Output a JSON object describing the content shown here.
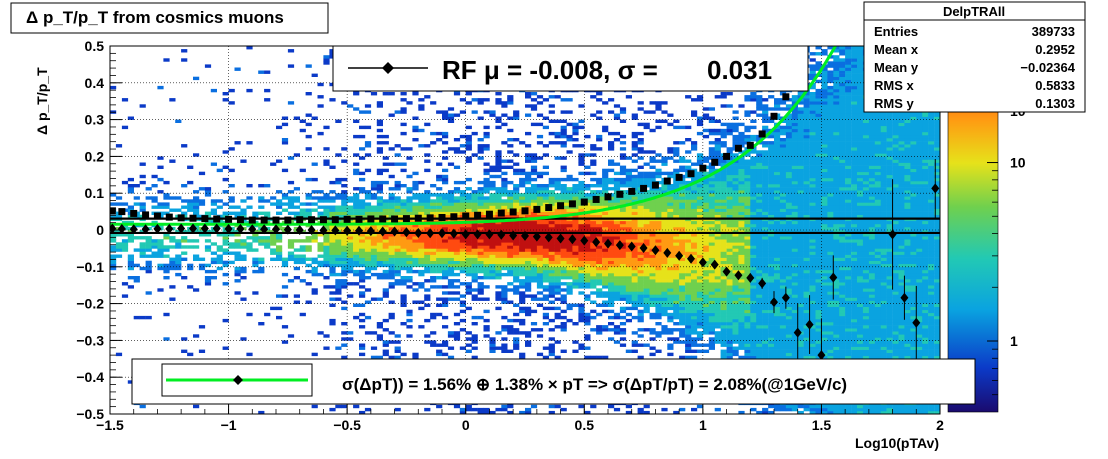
{
  "chart_data": {
    "type": "heatmap",
    "title": "Δ p_T/p_T from cosmics muons",
    "xlabel": "Log10(pTAv)",
    "ylabel": "Δ p_T/p_T",
    "xlim": [
      -1.5,
      2.0
    ],
    "ylim": [
      -0.5,
      0.5
    ],
    "x_ticks": [
      "−1.5",
      "−1",
      "−0.5",
      "0",
      "0.5",
      "1",
      "1.5",
      "2"
    ],
    "y_ticks": [
      "−0.5",
      "−0.4",
      "−0.3",
      "−0.2",
      "−0.1",
      "0",
      "0.1",
      "0.2",
      "0.3",
      "0.4",
      "0.5"
    ],
    "colorbar": {
      "scale": "log",
      "range": [
        0.4,
        45
      ],
      "ticks": [
        "1",
        "10"
      ],
      "top_label": "10"
    },
    "grid": true,
    "stats_box": {
      "name": "DelpTRAll",
      "rows": [
        {
          "label": "Entries",
          "value": "389733"
        },
        {
          "label": "Mean x",
          "value": "0.2952"
        },
        {
          "label": "Mean y",
          "value": "−0.02364"
        },
        {
          "label": "RMS x",
          "value": "0.5833"
        },
        {
          "label": "RMS y",
          "value": "0.1303"
        }
      ]
    },
    "legend_top": {
      "text_pre": "RF μ = -0.008, σ =",
      "text_val": "0.031"
    },
    "legend_bottom": {
      "text": "σ(ΔpT)) =  1.56% ⊕  1.38% × pT => σ(ΔpT/pT) =  2.08%(@1GeV/c)"
    },
    "series": [
      {
        "marker": "square",
        "x": [
          -1.49,
          -1.45,
          -1.4,
          -1.35,
          -1.3,
          -1.25,
          -1.2,
          -1.15,
          -1.1,
          -1.05,
          -1.0,
          -0.95,
          -0.9,
          -0.85,
          -0.8,
          -0.75,
          -0.7,
          -0.65,
          -0.6,
          -0.55,
          -0.5,
          -0.45,
          -0.4,
          -0.35,
          -0.3,
          -0.25,
          -0.2,
          -0.15,
          -0.1,
          -0.05,
          0.0,
          0.05,
          0.1,
          0.15,
          0.2,
          0.25,
          0.3,
          0.35,
          0.4,
          0.45,
          0.5,
          0.55,
          0.6,
          0.65,
          0.7,
          0.75,
          0.8,
          0.85,
          0.9,
          0.95,
          1.0,
          1.05,
          1.1,
          1.15,
          1.2,
          1.25,
          1.3,
          1.35,
          1.4
        ],
        "y": [
          0.052,
          0.05,
          0.045,
          0.041,
          0.038,
          0.035,
          0.033,
          0.032,
          0.031,
          0.03,
          0.029,
          0.028,
          0.027,
          0.027,
          0.027,
          0.027,
          0.028,
          0.028,
          0.028,
          0.028,
          0.029,
          0.029,
          0.03,
          0.03,
          0.03,
          0.031,
          0.032,
          0.033,
          0.034,
          0.036,
          0.038,
          0.04,
          0.043,
          0.046,
          0.049,
          0.052,
          0.056,
          0.061,
          0.066,
          0.071,
          0.076,
          0.083,
          0.09,
          0.097,
          0.105,
          0.113,
          0.122,
          0.133,
          0.143,
          0.153,
          0.168,
          0.184,
          0.2,
          0.222,
          0.23,
          0.261,
          0.309,
          0.362,
          0.417
        ]
      },
      {
        "marker": "diamond",
        "x": [
          -1.49,
          -1.45,
          -1.4,
          -1.35,
          -1.3,
          -1.25,
          -1.2,
          -1.15,
          -1.1,
          -1.05,
          -1.0,
          -0.95,
          -0.9,
          -0.85,
          -0.8,
          -0.75,
          -0.7,
          -0.65,
          -0.6,
          -0.55,
          -0.5,
          -0.45,
          -0.4,
          -0.35,
          -0.3,
          -0.25,
          -0.2,
          -0.15,
          -0.1,
          -0.05,
          0.0,
          0.05,
          0.1,
          0.15,
          0.2,
          0.25,
          0.3,
          0.35,
          0.4,
          0.45,
          0.5,
          0.55,
          0.6,
          0.65,
          0.7,
          0.75,
          0.8,
          0.85,
          0.9,
          0.95,
          1.0,
          1.05,
          1.1,
          1.15,
          1.2,
          1.25,
          1.3,
          1.35,
          1.4,
          1.45,
          1.5,
          1.55,
          1.8,
          1.85,
          1.9,
          1.98
        ],
        "y": [
          0.004,
          0.003,
          0.002,
          0.002,
          0.003,
          0.003,
          0.004,
          0.004,
          0.004,
          0.004,
          0.003,
          0.003,
          0.002,
          0.002,
          0.002,
          0.001,
          0.0,
          0.0,
          -0.001,
          -0.001,
          -0.002,
          -0.002,
          -0.003,
          -0.004,
          -0.004,
          -0.006,
          -0.008,
          -0.009,
          -0.009,
          -0.01,
          -0.012,
          -0.012,
          -0.012,
          -0.013,
          -0.015,
          -0.016,
          -0.018,
          -0.02,
          -0.023,
          -0.025,
          -0.029,
          -0.033,
          -0.037,
          -0.041,
          -0.045,
          -0.049,
          -0.055,
          -0.062,
          -0.07,
          -0.078,
          -0.088,
          -0.094,
          -0.113,
          -0.123,
          -0.13,
          -0.145,
          -0.196,
          -0.184,
          -0.279,
          -0.257,
          -0.34,
          -0.129,
          -0.012,
          -0.184,
          -0.252,
          0.113
        ],
        "yerr": [
          0.002,
          0.002,
          0.002,
          0.002,
          0.002,
          0.002,
          0.002,
          0.002,
          0.002,
          0.002,
          0.002,
          0.002,
          0.002,
          0.002,
          0.002,
          0.002,
          0.002,
          0.002,
          0.002,
          0.002,
          0.002,
          0.002,
          0.002,
          0.002,
          0.002,
          0.002,
          0.002,
          0.002,
          0.002,
          0.002,
          0.002,
          0.002,
          0.002,
          0.002,
          0.002,
          0.002,
          0.002,
          0.002,
          0.002,
          0.002,
          0.003,
          0.003,
          0.003,
          0.003,
          0.003,
          0.003,
          0.004,
          0.004,
          0.005,
          0.006,
          0.007,
          0.008,
          0.009,
          0.01,
          0.012,
          0.015,
          0.03,
          0.03,
          0.08,
          0.08,
          0.1,
          0.06,
          0.15,
          0.06,
          0.1,
          0.08
        ]
      }
    ],
    "fit_curves": [
      {
        "color": "#00ee22",
        "type": "sigma",
        "params": {
          "a": 0.0156,
          "b": 0.0138
        }
      }
    ],
    "reference_lines": [
      0.031,
      -0.008
    ]
  }
}
